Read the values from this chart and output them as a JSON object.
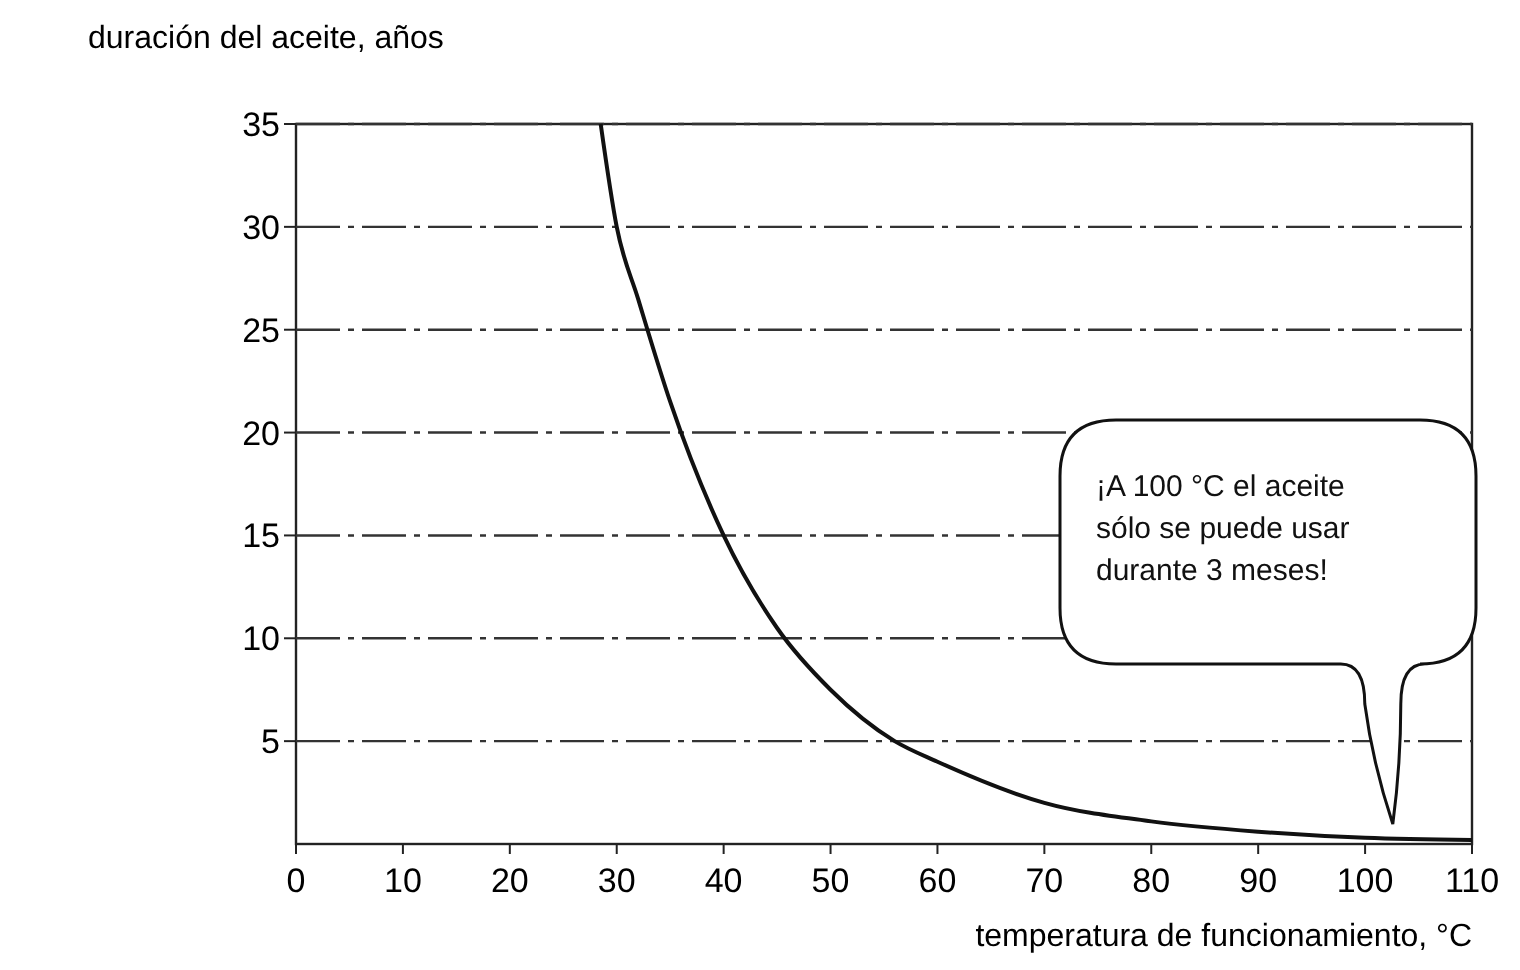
{
  "chart_data": {
    "type": "line",
    "ylabel": "duración del aceite, años",
    "xlabel": "temperatura de funcionamiento, °C",
    "x": [
      28.5,
      30,
      32,
      35,
      40,
      45,
      50,
      56,
      60,
      70,
      80,
      90,
      100,
      110
    ],
    "series": [
      {
        "color": "#111111",
        "values": [
          35,
          30,
          26.5,
          21.5,
          15,
          10.5,
          7.5,
          5,
          4,
          2,
          1.1,
          0.6,
          0.3,
          0.2
        ]
      }
    ],
    "xlim": [
      0,
      110
    ],
    "xticks": [
      0,
      10,
      20,
      30,
      40,
      50,
      60,
      70,
      80,
      90,
      100,
      110
    ],
    "ylim": [
      0,
      35
    ],
    "yticks": [
      5,
      10,
      15,
      20,
      25,
      30,
      35
    ],
    "grid": "y",
    "marker": "none",
    "line_style": "solid",
    "annotations": [
      "¡A 100 °C el aceite sólo se puede usar durante 3 meses!"
    ]
  }
}
